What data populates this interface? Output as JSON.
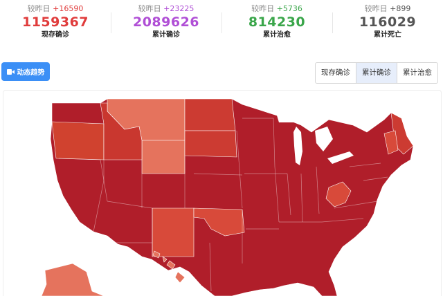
{
  "stats": [
    {
      "delta_label": "较昨日",
      "delta_value": "+16590",
      "value": "1159367",
      "label": "现存确诊",
      "color": "#e03c3c"
    },
    {
      "delta_label": "较昨日",
      "delta_value": "+23225",
      "value": "2089626",
      "label": "累计确诊",
      "color": "#b04fd6"
    },
    {
      "delta_label": "较昨日",
      "delta_value": "+5736",
      "value": "814230",
      "label": "累计治愈",
      "color": "#3aa64a"
    },
    {
      "delta_label": "较昨日",
      "delta_value": "+899",
      "value": "116029",
      "label": "累计死亡",
      "color": "#555555"
    }
  ],
  "trend_button": {
    "label": "动态趋势",
    "icon": "video-camera-icon"
  },
  "tabs": [
    {
      "label": "现存确诊",
      "active": false
    },
    {
      "label": "累计确诊",
      "active": true
    },
    {
      "label": "累计治愈",
      "active": false
    }
  ],
  "map": {
    "high_color": "#b01e2a",
    "mid_color": "#d84a3a",
    "low_color": "#e5735d"
  }
}
